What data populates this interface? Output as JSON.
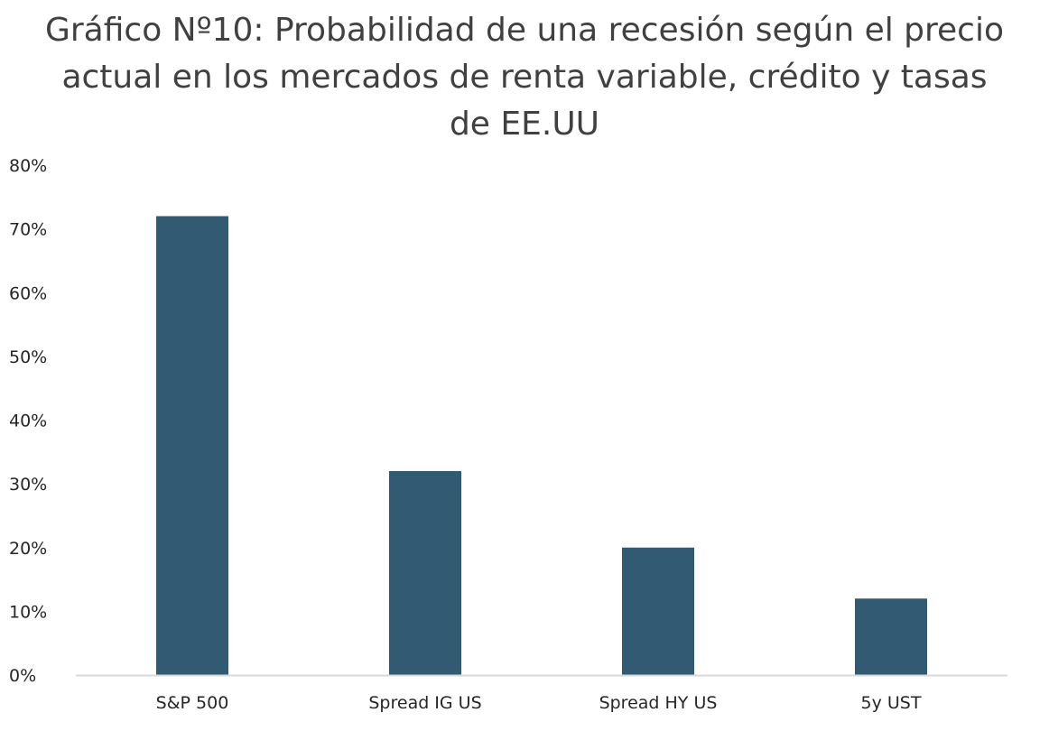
{
  "chart_data": {
    "type": "bar",
    "title_lines": [
      "Gráfico Nº10: Probabilidad de una recesión según el precio",
      "actual en los mercados de renta variable, crédito y tasas",
      "de EE.UU"
    ],
    "categories": [
      "S&P 500",
      "Spread IG US",
      "Spread HY US",
      "5y UST"
    ],
    "values": [
      72,
      32,
      20,
      12
    ],
    "y_unit": "%",
    "ylim": [
      0,
      80
    ],
    "y_ticks": [
      0,
      10,
      20,
      30,
      40,
      50,
      60,
      70,
      80
    ],
    "y_tick_labels": [
      "0%",
      "10%",
      "20%",
      "30%",
      "40%",
      "50%",
      "60%",
      "70%",
      "80%"
    ],
    "grid": false,
    "legend": "none",
    "bar_color": "#335a73",
    "axis_color": "#d9d9d9"
  }
}
